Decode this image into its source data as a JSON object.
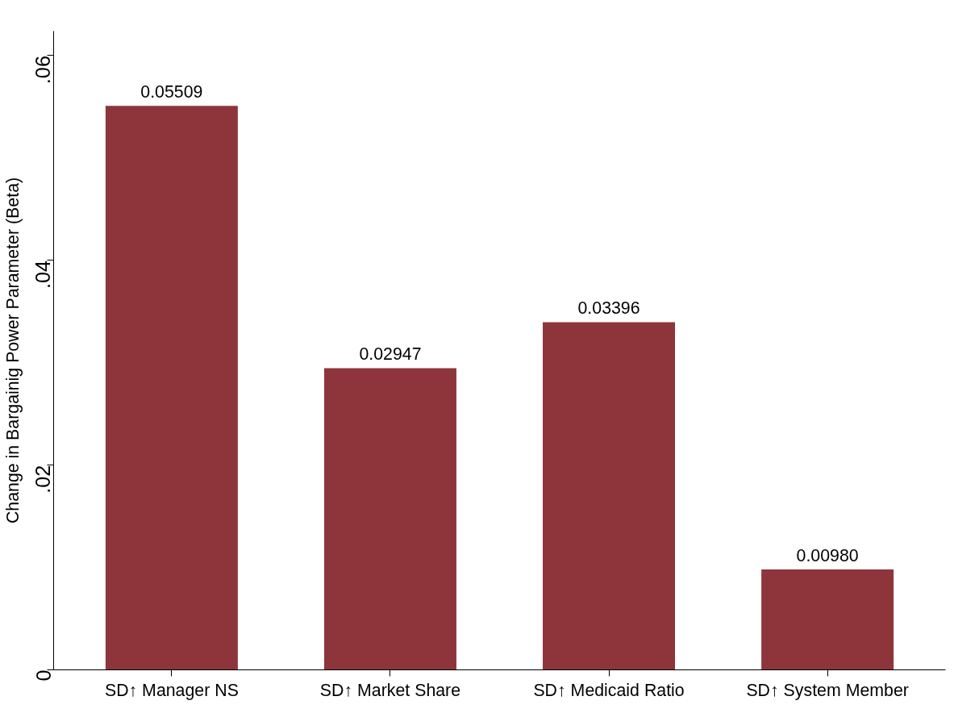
{
  "chart_data": {
    "type": "bar",
    "ylabel": "Change in Bargainig Power Parameter (Beta)",
    "categories": [
      "SD↑ Manager NS",
      "SD↑ Market Share",
      "SD↑ Medicaid Ratio",
      "SD↑ System Member"
    ],
    "values": [
      0.05509,
      0.02947,
      0.03396,
      0.0098
    ],
    "value_labels": [
      "0.05509",
      "0.02947",
      "0.03396",
      "0.00980"
    ],
    "color": "#8e353c",
    "ylim": [
      0,
      0.0624
    ],
    "yticks": [
      0,
      {
        "value": 0.02,
        "label": ".02"
      },
      {
        "value": 0.04,
        "label": ".04"
      },
      {
        "value": 0.06,
        "label": ".06"
      }
    ],
    "grid": false
  }
}
